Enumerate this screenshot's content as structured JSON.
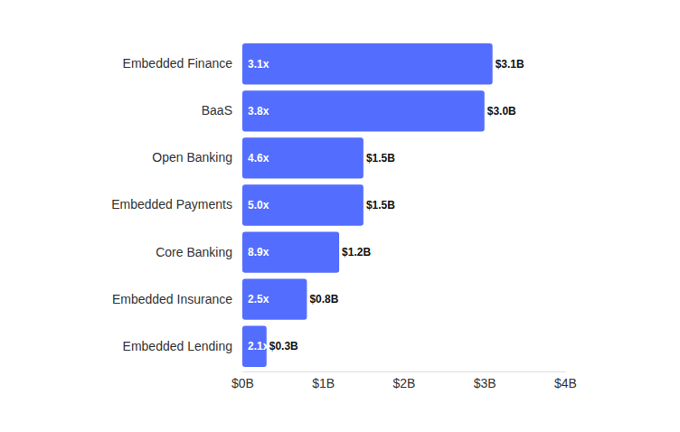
{
  "chart_data": {
    "type": "bar",
    "orientation": "horizontal",
    "categories": [
      "Embedded Finance",
      "BaaS",
      "Open Banking",
      "Embedded Payments",
      "Core Banking",
      "Embedded Insurance",
      "Embedded Lending"
    ],
    "values": [
      3.1,
      3.0,
      1.5,
      1.5,
      1.2,
      0.8,
      0.3
    ],
    "value_labels": [
      "$3.1B",
      "$3.0B",
      "$1.5B",
      "$1.5B",
      "$1.2B",
      "$0.8B",
      "$0.3B"
    ],
    "multiple_labels": [
      "3.1x",
      "3.8x",
      "4.6x",
      "5.0x",
      "8.9x",
      "2.5x",
      "2.1x"
    ],
    "color": "#536dfe",
    "xlim": [
      0,
      4
    ],
    "xticks": [
      {
        "value": 0,
        "label": "$0B"
      },
      {
        "value": 1,
        "label": "$1B"
      },
      {
        "value": 2,
        "label": "$2B"
      },
      {
        "value": 3,
        "label": "$3B"
      },
      {
        "value": 4,
        "label": "$4B"
      }
    ],
    "grid": false,
    "data_labels": true
  }
}
